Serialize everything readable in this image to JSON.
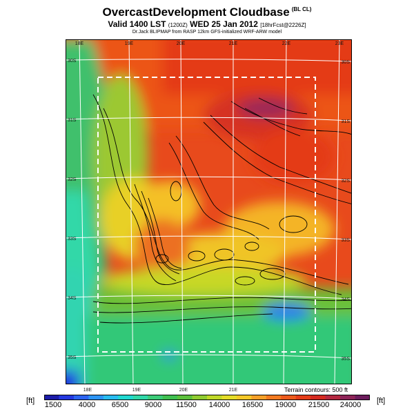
{
  "header": {
    "title": "OvercastDevelopment Cloudbase",
    "title_tag": "(BL CL)",
    "valid_line": "Valid 1400 LST",
    "valid_z": "(1200Z)",
    "valid_date": "WED 25 Jan 2012",
    "valid_run": "[18hrFcst@2226Z]",
    "credit": "Dr.Jack BLIPMAP from RASP 12km GFS-initialized WRF-ARW model"
  },
  "map": {
    "top_lon_labels": [
      "18E",
      "19E",
      "20E",
      "21E",
      "22E",
      "23E"
    ],
    "bottom_lon_labels": [
      "18E",
      "19E",
      "20E",
      "21E"
    ],
    "left_lat_labels": [
      "30S",
      "31S",
      "32S",
      "33S",
      "34S",
      "35S"
    ],
    "right_lat_labels": [
      "30S",
      "31S",
      "32S",
      "33S",
      "34S",
      "35S"
    ],
    "terrain_note": "Terrain contours: 500 ft"
  },
  "colorbar": {
    "unit_left": "[ft]",
    "unit_right": "[ft]",
    "tick_labels": [
      "1500",
      "4000",
      "6500",
      "9000",
      "11500",
      "14000",
      "16500",
      "19000",
      "21500",
      "24000"
    ],
    "colors": [
      "#1c1ca8",
      "#2438e0",
      "#2c64f0",
      "#2c94f4",
      "#28bcf0",
      "#20d8d0",
      "#30d8a8",
      "#3ccc78",
      "#40c050",
      "#5cc03c",
      "#90cc30",
      "#c0d828",
      "#e4dc28",
      "#f4c828",
      "#f4a028",
      "#f27a20",
      "#ec5a1c",
      "#e43c18",
      "#d42a20",
      "#b42840",
      "#8e2458",
      "#6c1c5c"
    ]
  }
}
